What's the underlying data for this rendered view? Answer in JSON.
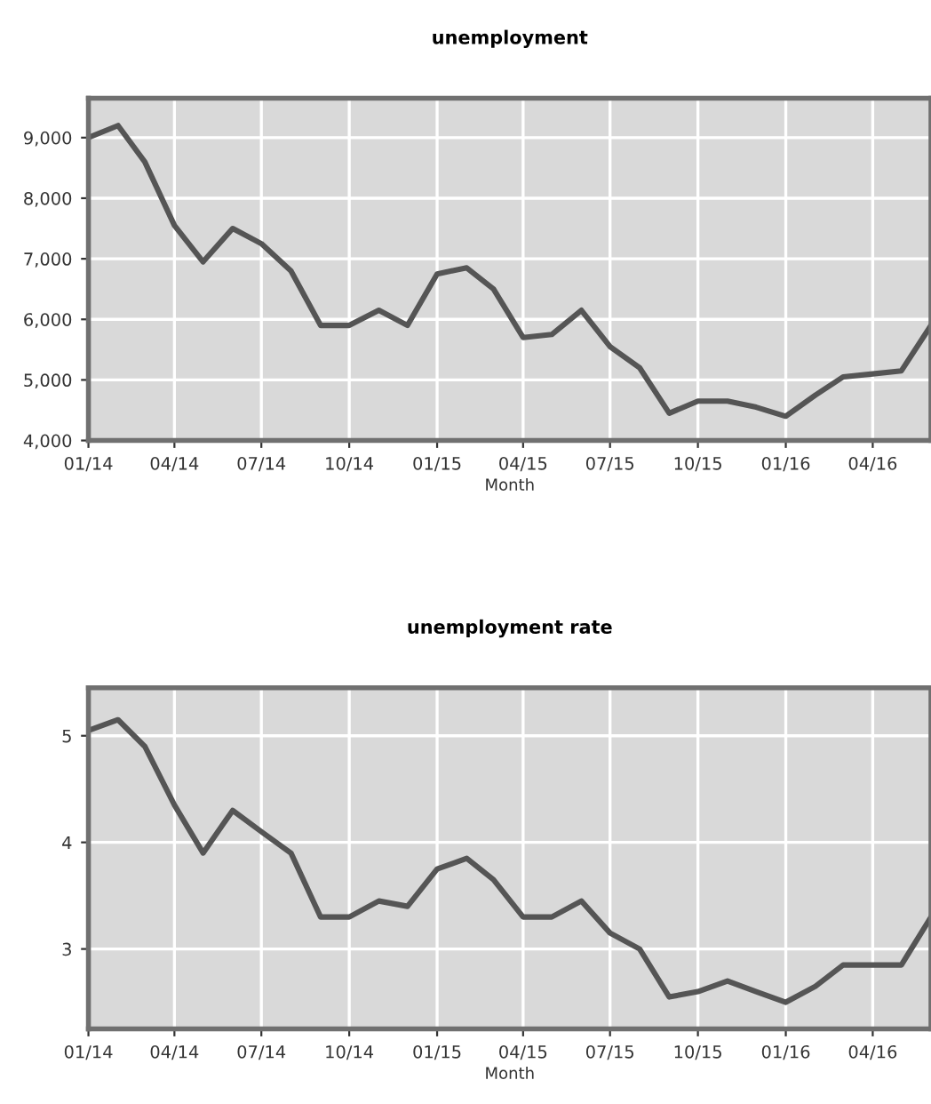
{
  "chart_data": [
    {
      "type": "line",
      "title": "unemployment",
      "xlabel": "Month",
      "grid": true,
      "marker": "none",
      "line_style": "solid",
      "x": [
        "2014-01",
        "2014-02",
        "2014-03",
        "2014-04",
        "2014-05",
        "2014-06",
        "2014-07",
        "2014-08",
        "2014-09",
        "2014-10",
        "2014-11",
        "2014-12",
        "2015-01",
        "2015-02",
        "2015-03",
        "2015-04",
        "2015-05",
        "2015-06",
        "2015-07",
        "2015-08",
        "2015-09",
        "2015-10",
        "2015-11",
        "2015-12",
        "2016-01",
        "2016-02",
        "2016-03",
        "2016-04",
        "2016-05",
        "2016-06"
      ],
      "series": [
        {
          "color": "#555555",
          "values": [
            9000,
            9200,
            8600,
            7550,
            6950,
            7500,
            7250,
            6800,
            5900,
            5900,
            6150,
            5900,
            6750,
            6850,
            6500,
            5700,
            5750,
            6150,
            5550,
            5200,
            4450,
            4650,
            4650,
            4550,
            4400,
            4750,
            5050,
            5100,
            5150,
            5900
          ]
        }
      ],
      "xlim": [
        "2014-01",
        "2016-06"
      ],
      "ylim": [
        4000,
        9650
      ],
      "xticks": [
        {
          "value": "2014-01",
          "label": "01/14"
        },
        {
          "value": "2014-04",
          "label": "04/14"
        },
        {
          "value": "2014-07",
          "label": "07/14"
        },
        {
          "value": "2014-10",
          "label": "10/14"
        },
        {
          "value": "2015-01",
          "label": "01/15"
        },
        {
          "value": "2015-04",
          "label": "04/15"
        },
        {
          "value": "2015-07",
          "label": "07/15"
        },
        {
          "value": "2015-10",
          "label": "10/15"
        },
        {
          "value": "2016-01",
          "label": "01/16"
        },
        {
          "value": "2016-04",
          "label": "04/16"
        }
      ],
      "yticks": [
        {
          "value": 4000,
          "label": "4,000"
        },
        {
          "value": 5000,
          "label": "5,000"
        },
        {
          "value": 6000,
          "label": "6,000"
        },
        {
          "value": 7000,
          "label": "7,000"
        },
        {
          "value": 8000,
          "label": "8,000"
        },
        {
          "value": 9000,
          "label": "9,000"
        }
      ]
    },
    {
      "type": "line",
      "title": "unemployment rate",
      "xlabel": "Month",
      "grid": true,
      "marker": "none",
      "line_style": "solid",
      "x": [
        "2014-01",
        "2014-02",
        "2014-03",
        "2014-04",
        "2014-05",
        "2014-06",
        "2014-07",
        "2014-08",
        "2014-09",
        "2014-10",
        "2014-11",
        "2014-12",
        "2015-01",
        "2015-02",
        "2015-03",
        "2015-04",
        "2015-05",
        "2015-06",
        "2015-07",
        "2015-08",
        "2015-09",
        "2015-10",
        "2015-11",
        "2015-12",
        "2016-01",
        "2016-02",
        "2016-03",
        "2016-04",
        "2016-05",
        "2016-06"
      ],
      "series": [
        {
          "color": "#555555",
          "values": [
            5.05,
            5.15,
            4.9,
            4.35,
            3.9,
            4.3,
            4.1,
            3.9,
            3.3,
            3.3,
            3.45,
            3.4,
            3.75,
            3.85,
            3.65,
            3.3,
            3.3,
            3.45,
            3.15,
            3.0,
            2.55,
            2.6,
            2.7,
            2.6,
            2.5,
            2.65,
            2.85,
            2.85,
            2.85,
            3.3
          ]
        }
      ],
      "xlim": [
        "2014-01",
        "2016-06"
      ],
      "ylim": [
        2.25,
        5.45
      ],
      "xticks": [
        {
          "value": "2014-01",
          "label": "01/14"
        },
        {
          "value": "2014-04",
          "label": "04/14"
        },
        {
          "value": "2014-07",
          "label": "07/14"
        },
        {
          "value": "2014-10",
          "label": "10/14"
        },
        {
          "value": "2015-01",
          "label": "01/15"
        },
        {
          "value": "2015-04",
          "label": "04/15"
        },
        {
          "value": "2015-07",
          "label": "07/15"
        },
        {
          "value": "2015-10",
          "label": "10/15"
        },
        {
          "value": "2016-01",
          "label": "01/16"
        },
        {
          "value": "2016-04",
          "label": "04/16"
        }
      ],
      "yticks": [
        3,
        4,
        5
      ]
    }
  ]
}
